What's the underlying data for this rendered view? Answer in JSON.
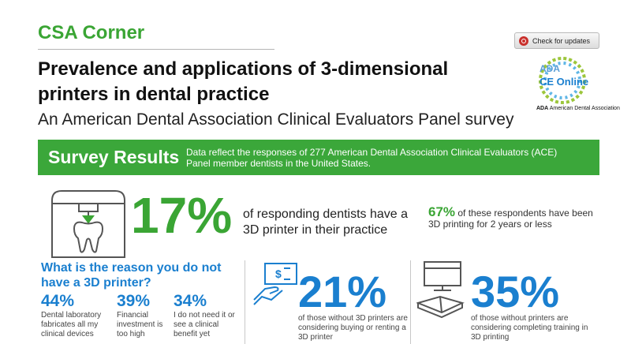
{
  "header": {
    "section": "CSA Corner",
    "title": "Prevalence and applications of 3-dimensional printers in dental practice",
    "subtitle": "An American Dental Association Clinical Evaluators Panel survey",
    "update_button": "Check for updates",
    "logo": {
      "line1": "ADA",
      "line2": "CE Online",
      "caption_bold": "ADA",
      "caption": "American Dental Association"
    }
  },
  "banner": {
    "title": "Survey Results",
    "text": "Data reflect the responses of 277 American Dental Association Clinical Evaluators (ACE) Panel member dentists in the United States."
  },
  "stats": {
    "main": {
      "value": "17%",
      "text": "of responding dentists have a 3D printer in their practice"
    },
    "sub": {
      "value": "67%",
      "text": "of these respondents have been 3D printing for 2 years or less"
    }
  },
  "reasons": {
    "question": "What is the reason you do not have a 3D printer?",
    "items": [
      {
        "pct": "44%",
        "desc": "Dental laboratory fabricates all my clinical devices"
      },
      {
        "pct": "39%",
        "desc": "Financial investment is too high"
      },
      {
        "pct": "34%",
        "desc": "I do not need it or see a clinical benefit yet"
      }
    ]
  },
  "buying": {
    "value": "21%",
    "text": "of those without 3D printers are considering buying or renting a 3D printer"
  },
  "training": {
    "value": "35%",
    "text": "of those without printers are considering completing training in 3D printing"
  },
  "colors": {
    "green": "#3aa534",
    "blue": "#1a7fcf",
    "banner": "#3ba73a"
  },
  "icons": [
    "refresh-icon",
    "ada-logo",
    "3d-printer-tooth-icon",
    "money-card-icon",
    "computer-book-icon"
  ]
}
